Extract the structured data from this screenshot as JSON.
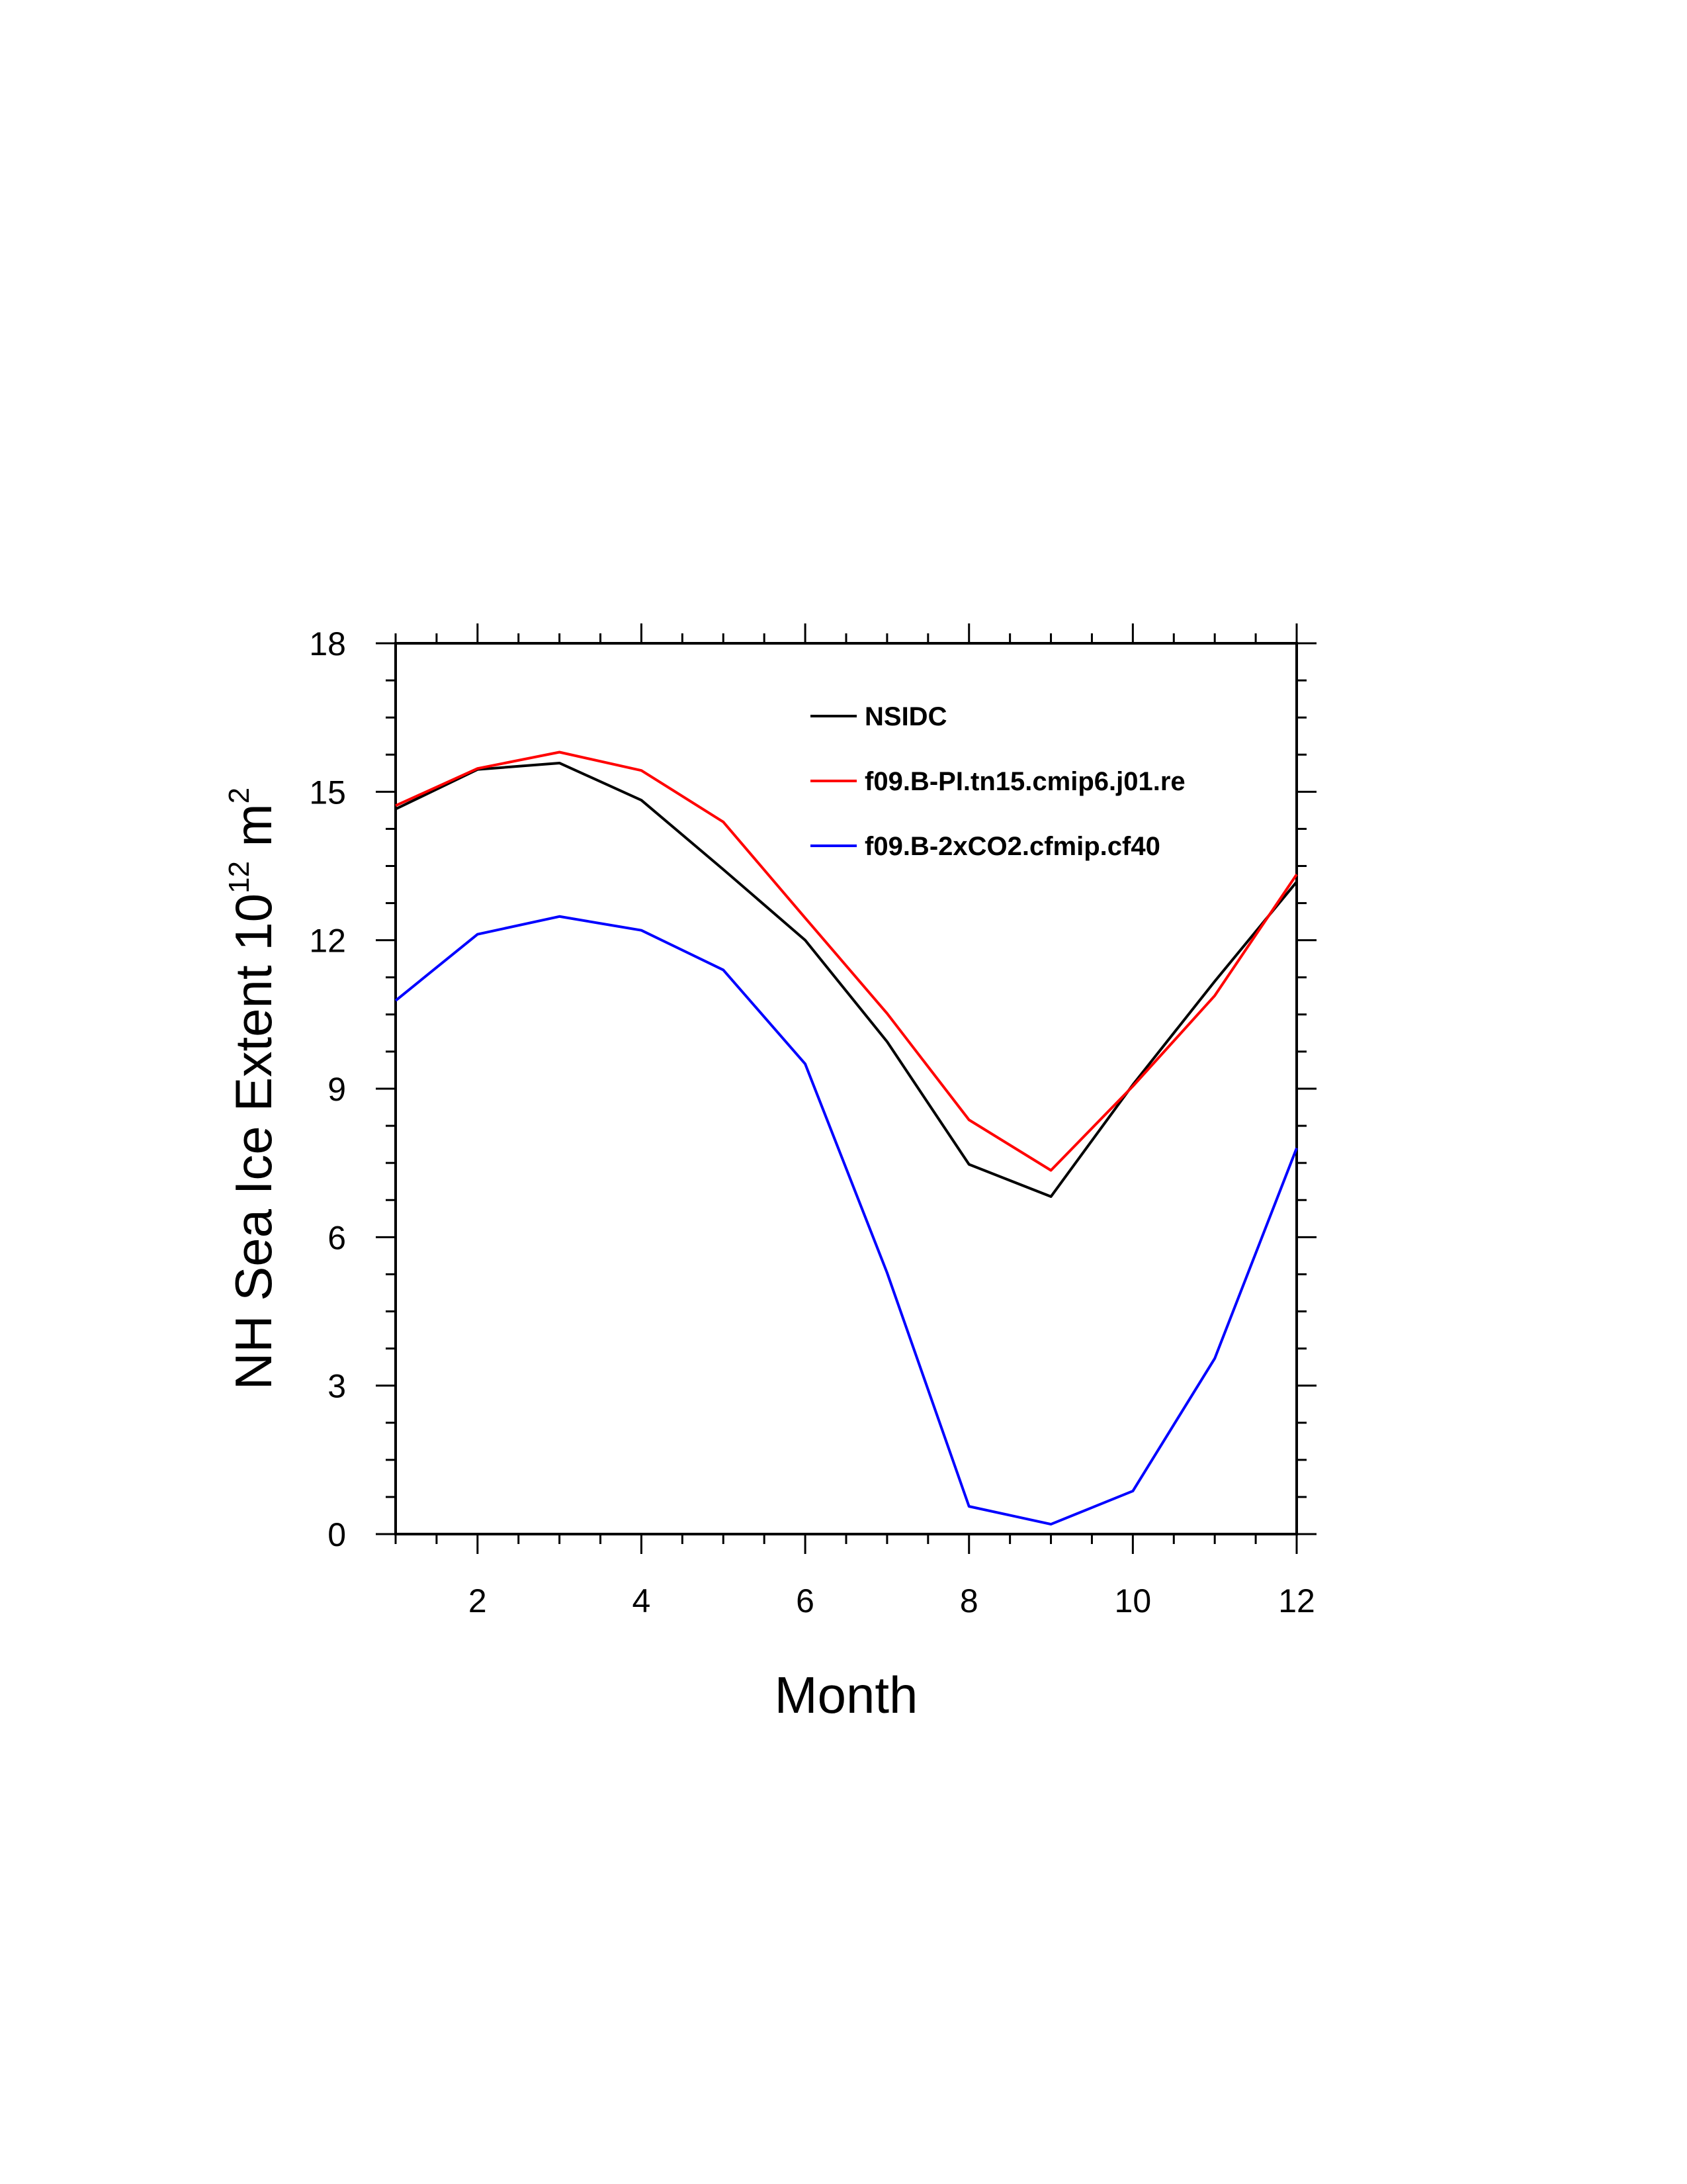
{
  "chart_data": {
    "type": "line",
    "title": "",
    "xlabel": "Month",
    "ylabel": "NH Sea Ice Extent 10",
    "ylabel_sup": "12",
    "ylabel_unit": " m",
    "ylabel_unit_sup": "2",
    "xlim": [
      1,
      12
    ],
    "ylim": [
      0,
      18
    ],
    "x_ticks": [
      2,
      4,
      6,
      8,
      10,
      12
    ],
    "y_ticks": [
      0,
      3,
      6,
      9,
      12,
      15,
      18
    ],
    "grid": false,
    "legend_position": "top-right",
    "x": [
      1,
      2,
      3,
      4,
      5,
      6,
      7,
      8,
      9,
      10,
      11,
      12
    ],
    "series": [
      {
        "name": "NSIDC",
        "color": "#000000",
        "values": [
          14.65,
          15.45,
          15.58,
          14.83,
          13.43,
          12.0,
          9.95,
          7.47,
          6.82,
          9.08,
          11.17,
          13.18
        ]
      },
      {
        "name": "f09.B-PI.tn15.cmip6.j01.re",
        "color": "#ff0000",
        "values": [
          14.72,
          15.47,
          15.8,
          15.43,
          14.39,
          12.45,
          10.52,
          8.37,
          7.35,
          9.05,
          10.88,
          13.33
        ]
      },
      {
        "name": "f09.B-2xCO2.cfmip.cf40",
        "color": "#0000ff",
        "values": [
          10.78,
          12.12,
          12.48,
          12.2,
          11.4,
          9.5,
          5.28,
          0.56,
          0.2,
          0.87,
          3.55,
          7.8
        ]
      }
    ]
  }
}
